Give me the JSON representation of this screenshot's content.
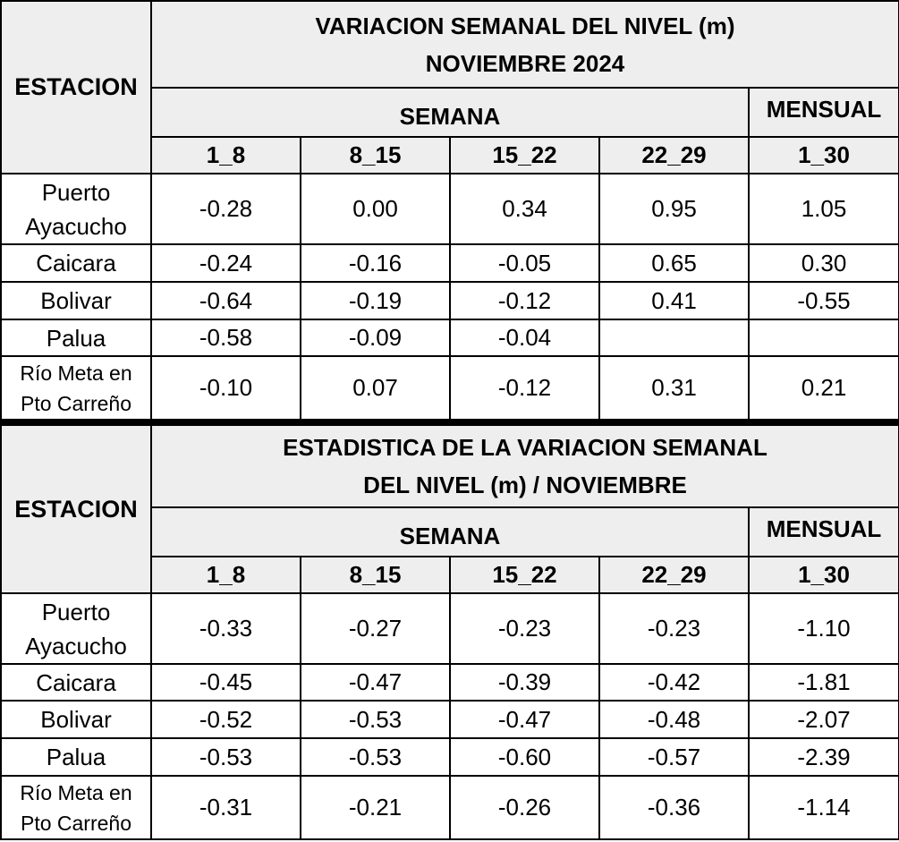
{
  "tables": [
    {
      "station_header": "ESTACION",
      "title_lines": [
        "VARIACION SEMANAL DEL NIVEL (m)",
        "NOVIEMBRE 2024"
      ],
      "semana": "SEMANA",
      "mensual": "MENSUAL",
      "weeks": [
        "1_8",
        "8_15",
        "15_22",
        "22_29",
        "1_30"
      ],
      "rows": [
        {
          "station": "Puerto Ayacucho",
          "values": [
            "-0.28",
            "0.00",
            "0.34",
            "0.95",
            "1.05"
          ]
        },
        {
          "station": "Caicara",
          "values": [
            "-0.24",
            "-0.16",
            "-0.05",
            "0.65",
            "0.30"
          ]
        },
        {
          "station": "Bolivar",
          "values": [
            "-0.64",
            "-0.19",
            "-0.12",
            "0.41",
            "-0.55"
          ]
        },
        {
          "station": "Palua",
          "values": [
            "-0.58",
            "-0.09",
            "-0.04",
            null,
            null
          ]
        },
        {
          "station": "Río Meta en Pto Carreño",
          "values": [
            "-0.10",
            "0.07",
            "-0.12",
            "0.31",
            "0.21"
          ]
        }
      ]
    },
    {
      "station_header": "ESTACION",
      "title_lines": [
        "ESTADISTICA DE LA VARIACION SEMANAL",
        "DEL NIVEL (m) / NOVIEMBRE"
      ],
      "semana": "SEMANA",
      "mensual": "MENSUAL",
      "weeks": [
        "1_8",
        "8_15",
        "15_22",
        "22_29",
        "1_30"
      ],
      "rows": [
        {
          "station": "Puerto Ayacucho",
          "values": [
            "-0.33",
            "-0.27",
            "-0.23",
            "-0.23",
            "-1.10"
          ]
        },
        {
          "station": "Caicara",
          "values": [
            "-0.45",
            "-0.47",
            "-0.39",
            "-0.42",
            "-1.81"
          ]
        },
        {
          "station": "Bolivar",
          "values": [
            "-0.52",
            "-0.53",
            "-0.47",
            "-0.48",
            "-2.07"
          ]
        },
        {
          "station": "Palua",
          "values": [
            "-0.53",
            "-0.53",
            "-0.60",
            "-0.57",
            "-2.39"
          ]
        },
        {
          "station": "Río Meta en Pto Carreño",
          "values": [
            "-0.31",
            "-0.21",
            "-0.26",
            "-0.36",
            "-1.14"
          ]
        }
      ]
    }
  ]
}
